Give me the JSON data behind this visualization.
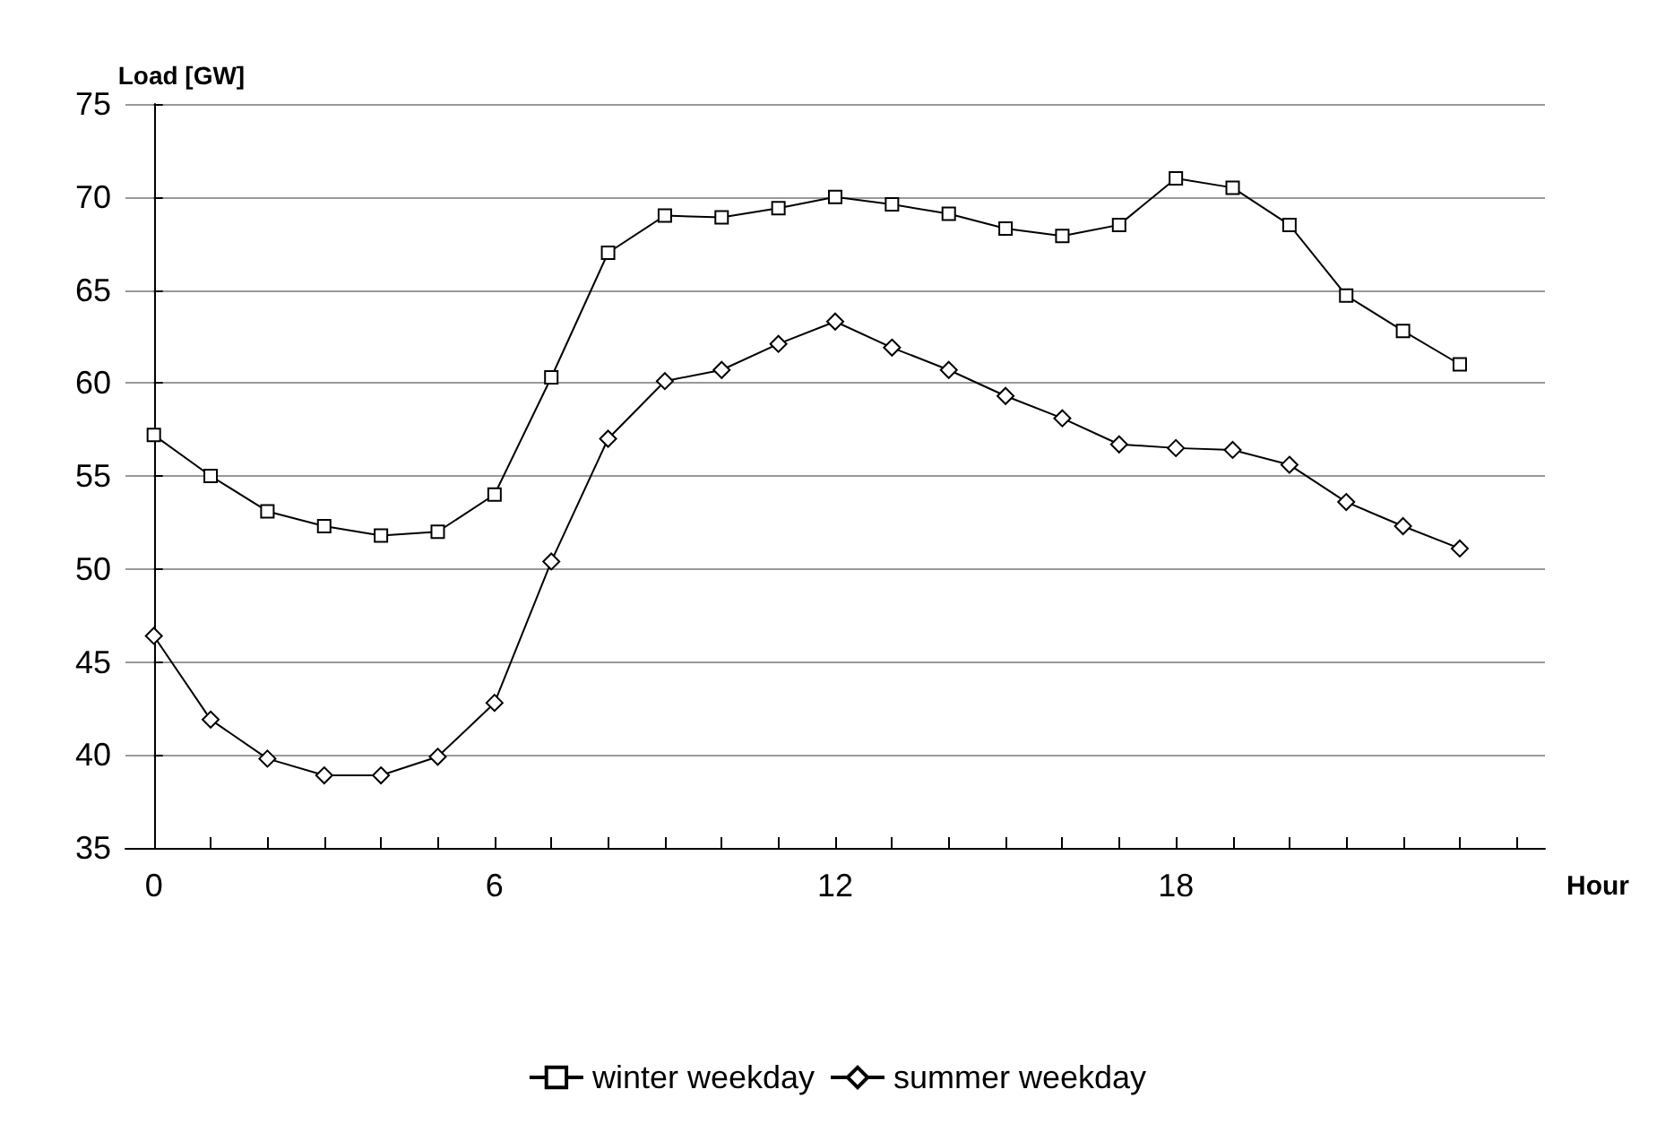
{
  "chart_data": {
    "type": "line",
    "xlabel": "Hour",
    "ylabel": "Load [GW]",
    "x": [
      0,
      1,
      2,
      3,
      4,
      5,
      6,
      7,
      8,
      9,
      10,
      11,
      12,
      13,
      14,
      15,
      16,
      17,
      18,
      19,
      20,
      21,
      22,
      23
    ],
    "series": [
      {
        "name": "winter weekday",
        "color": "#000000",
        "marker": "square",
        "values": [
          57.2,
          55.0,
          53.1,
          52.3,
          51.8,
          52.0,
          54.0,
          60.3,
          67.0,
          69.0,
          68.9,
          69.4,
          70.0,
          69.6,
          69.1,
          68.3,
          67.9,
          68.5,
          71.0,
          70.5,
          68.5,
          64.7,
          62.8,
          61.0
        ]
      },
      {
        "name": "summer weekday",
        "color": "#000000",
        "marker": "diamond",
        "values": [
          46.4,
          41.9,
          39.8,
          38.9,
          38.9,
          39.9,
          42.8,
          50.4,
          57.0,
          60.1,
          60.7,
          62.1,
          63.3,
          61.9,
          60.7,
          59.3,
          58.1,
          56.7,
          56.5,
          56.4,
          55.6,
          53.6,
          52.3,
          51.1
        ]
      }
    ],
    "xlim": [
      -0.5,
      24.5
    ],
    "xticks": [
      0,
      {
        "value": 1,
        "label": null
      },
      {
        "value": 2,
        "label": null
      },
      {
        "value": 3,
        "label": null
      },
      {
        "value": 4,
        "label": null
      },
      {
        "value": 5,
        "label": null
      },
      6,
      {
        "value": 7,
        "label": null
      },
      {
        "value": 8,
        "label": null
      },
      {
        "value": 9,
        "label": null
      },
      {
        "value": 10,
        "label": null
      },
      {
        "value": 11,
        "label": null
      },
      12,
      {
        "value": 13,
        "label": null
      },
      {
        "value": 14,
        "label": null
      },
      {
        "value": 15,
        "label": null
      },
      {
        "value": 16,
        "label": null
      },
      {
        "value": 17,
        "label": null
      },
      18,
      {
        "value": 19,
        "label": null
      },
      {
        "value": 20,
        "label": null
      },
      {
        "value": 21,
        "label": null
      },
      {
        "value": 22,
        "label": null
      },
      {
        "value": 23,
        "label": null
      },
      {
        "value": 24,
        "label": null
      }
    ],
    "ylim": [
      35,
      75
    ],
    "yticks": [
      35,
      40,
      45,
      50,
      55,
      60,
      65,
      70,
      75
    ],
    "grid": "y",
    "legend": "bottom",
    "line_style": "solid"
  }
}
